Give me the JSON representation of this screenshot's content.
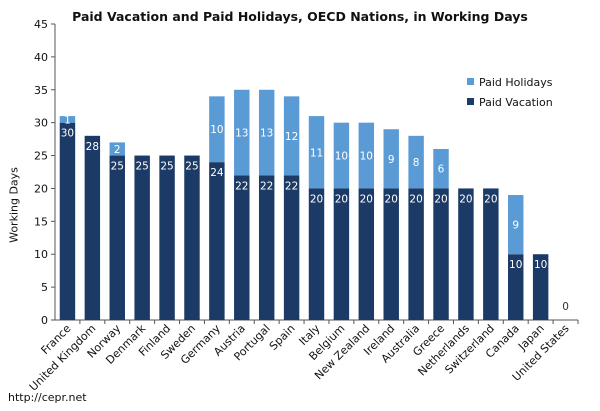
{
  "chart_data": {
    "type": "bar",
    "stacked": true,
    "title": "Paid Vacation and Paid Holidays, OECD Nations, in Working Days",
    "xlabel": "",
    "ylabel": "Working Days",
    "ylim": [
      0,
      45
    ],
    "yticks": [
      0,
      5,
      10,
      15,
      20,
      25,
      30,
      35,
      40,
      45
    ],
    "grid": false,
    "legend_position": "right",
    "categories": [
      "France",
      "United Kingdom",
      "Norway",
      "Denmark",
      "Finland",
      "Sweden",
      "Germany",
      "Austria",
      "Portugal",
      "Spain",
      "Italy",
      "Belgium",
      "New Zealand",
      "Ireland",
      "Australia",
      "Greece",
      "Netherlands",
      "Switzerland",
      "Canada",
      "Japan",
      "United States"
    ],
    "series": [
      {
        "name": "Paid Vacation",
        "color": "#1b3a66",
        "label_color": "#ffffff",
        "values": [
          30,
          28,
          25,
          25,
          25,
          25,
          24,
          22,
          22,
          22,
          20,
          20,
          20,
          20,
          20,
          20,
          20,
          20,
          10,
          10,
          0
        ]
      },
      {
        "name": "Paid Holidays",
        "color": "#5b9bd5",
        "label_color": "#ffffff",
        "values": [
          1,
          0,
          2,
          0,
          0,
          0,
          10,
          13,
          13,
          12,
          11,
          10,
          10,
          9,
          8,
          6,
          0,
          0,
          9,
          0,
          0
        ]
      }
    ],
    "legend_order": [
      "Paid Holidays",
      "Paid Vacation"
    ],
    "source": "http://cepr.net"
  }
}
